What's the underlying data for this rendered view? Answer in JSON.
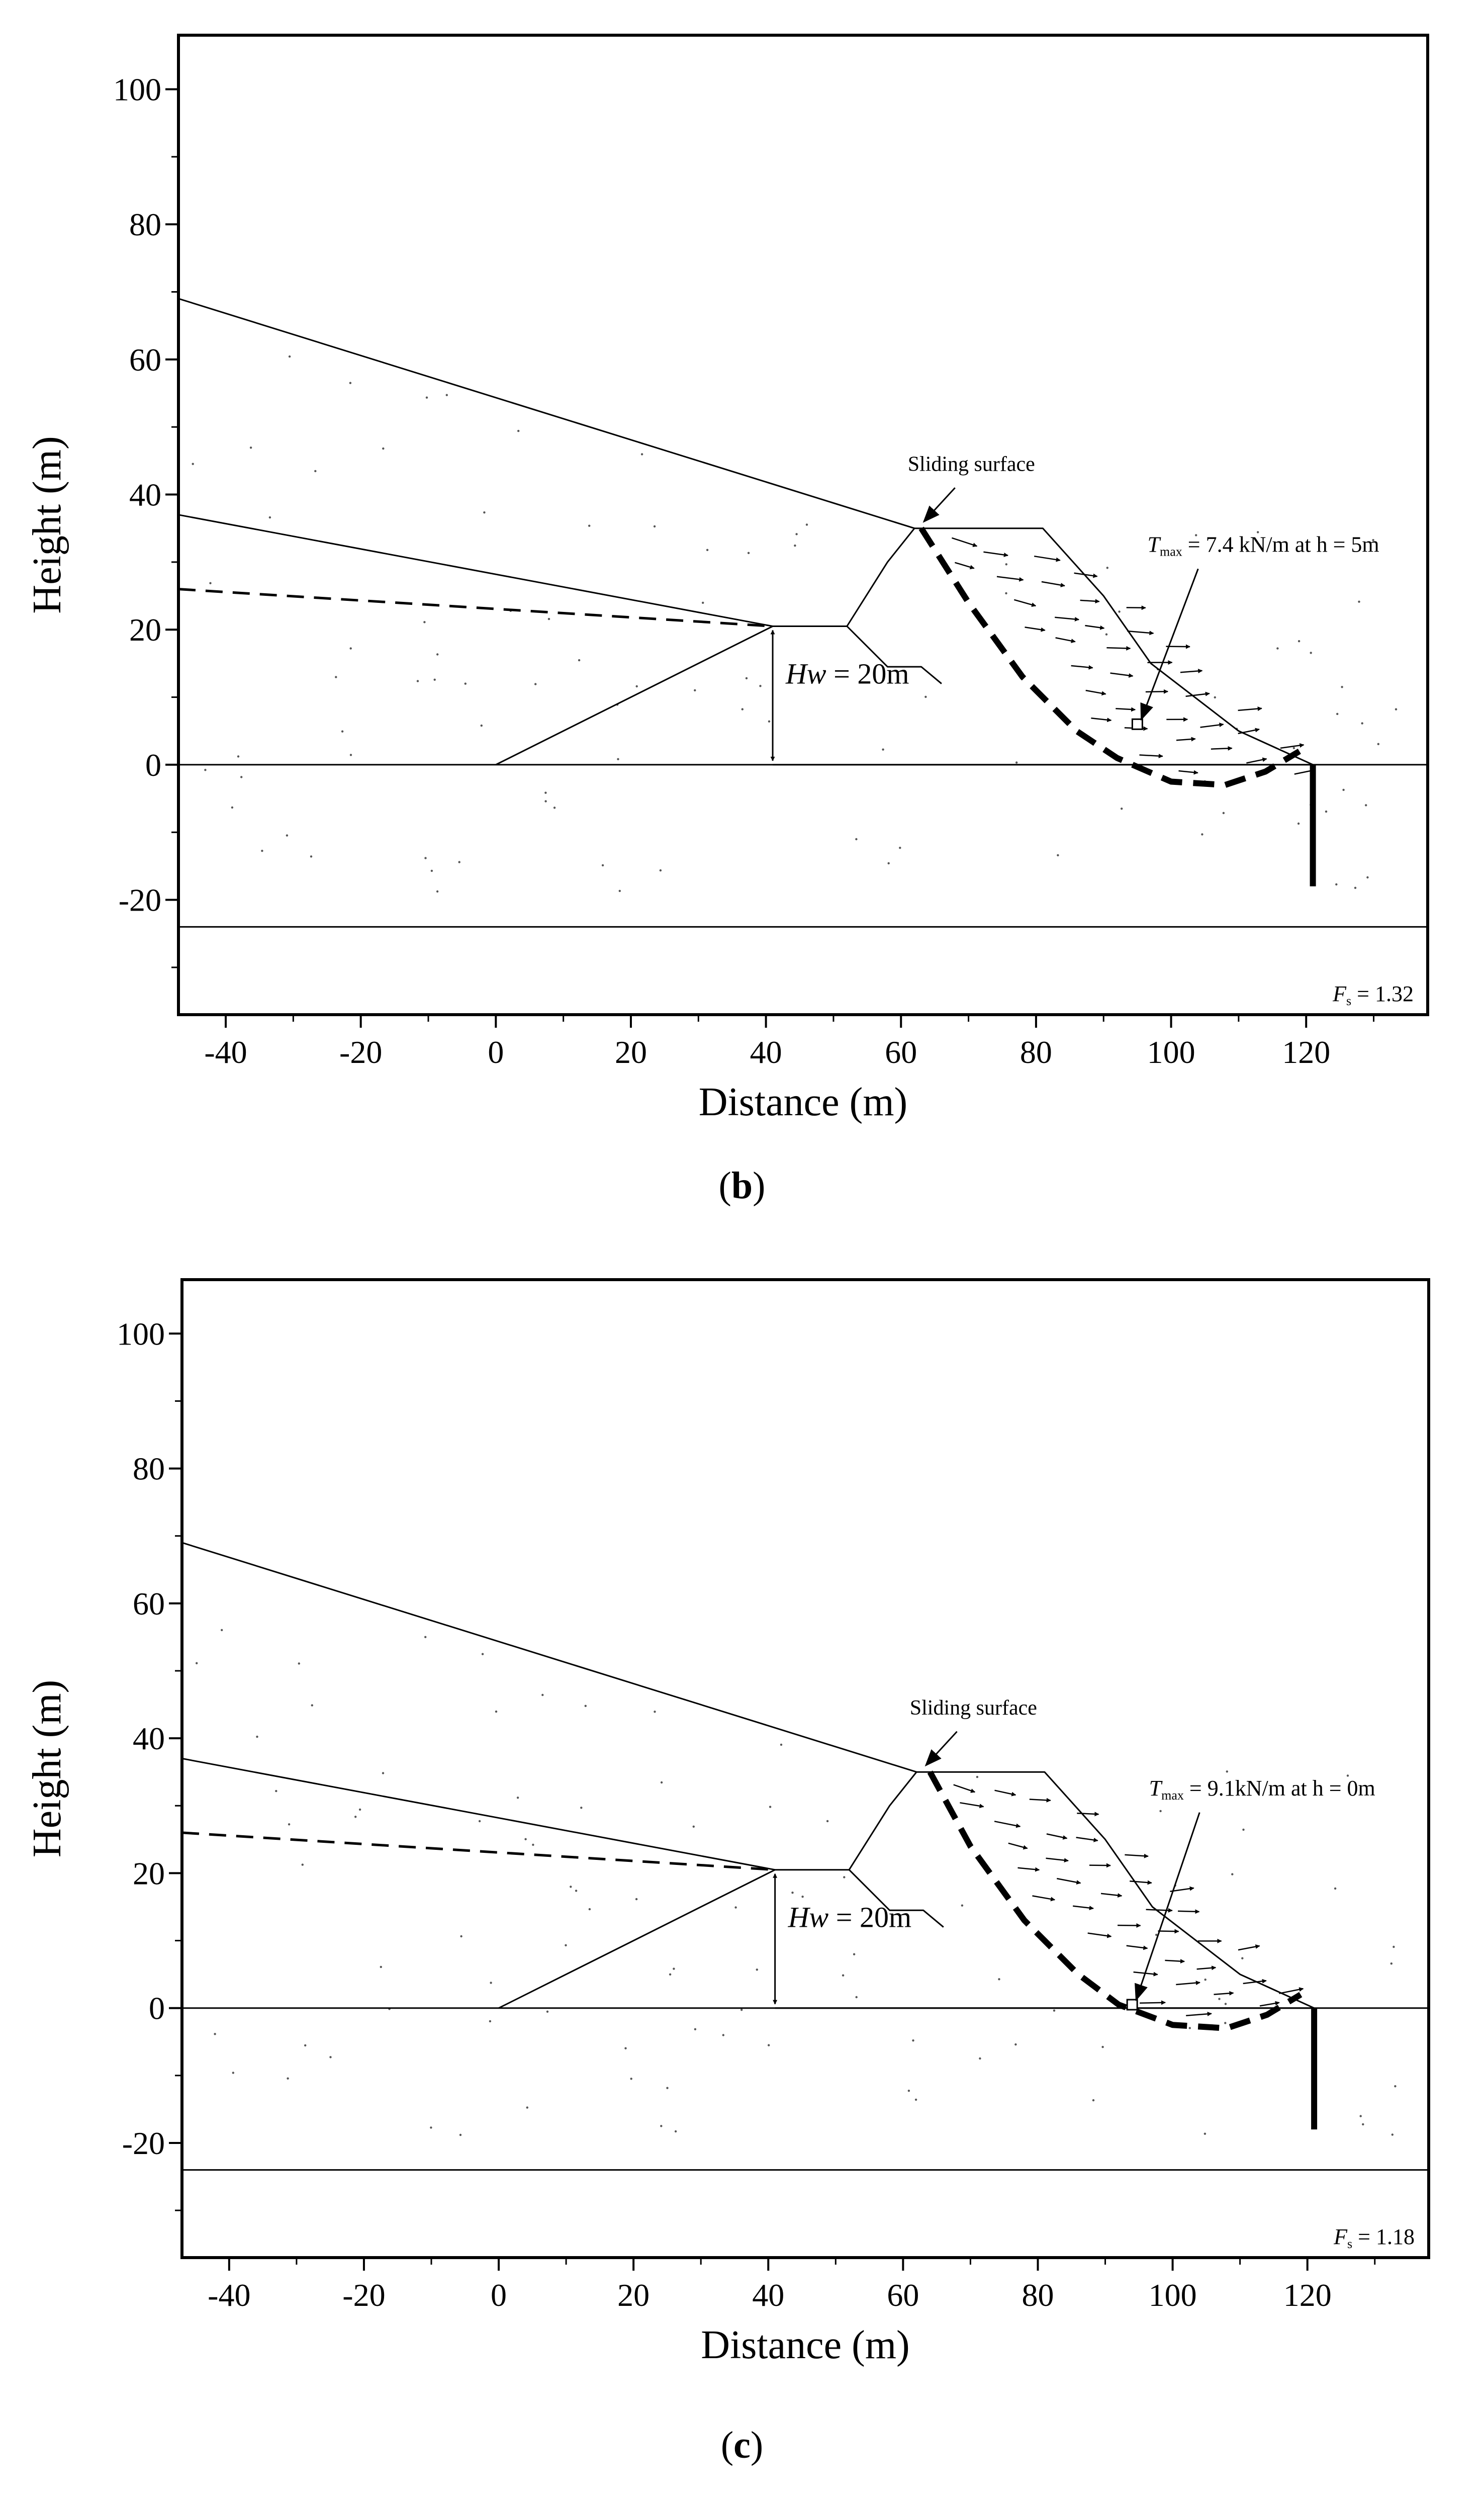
{
  "figure_captions": [
    {
      "open": "(",
      "letter": "b",
      "close": ")"
    },
    {
      "open": "(",
      "letter": "c",
      "close": ")"
    }
  ],
  "chart_data": [
    {
      "type": "line",
      "panel": "b",
      "xlabel": "Distance (m)",
      "ylabel": "Height (m)",
      "xlim": [
        -47,
        138
      ],
      "ylim": [
        -37,
        108
      ],
      "xticks": [
        -40,
        -20,
        0,
        20,
        40,
        60,
        80,
        100,
        120
      ],
      "yticks": [
        100,
        80,
        60,
        40,
        20,
        0,
        -20
      ],
      "grid": false,
      "series": [
        {
          "name": "ground-surface",
          "style": "solid",
          "points": [
            [
              -47,
              69
            ],
            [
              62,
              35
            ]
          ]
        },
        {
          "name": "layer-boundary",
          "style": "solid",
          "points": [
            [
              -47,
              37
            ],
            [
              41,
              20.5
            ]
          ]
        },
        {
          "name": "water-table",
          "style": "dashed",
          "points": [
            [
              -47,
              26
            ],
            [
              41,
              20.5
            ]
          ]
        },
        {
          "name": "embankment-upstream",
          "style": "solid",
          "points": [
            [
              0,
              0
            ],
            [
              41,
              20.5
            ],
            [
              52,
              20.5
            ],
            [
              58,
              30
            ],
            [
              62,
              35
            ],
            [
              81,
              35
            ],
            [
              90,
              25
            ],
            [
              97,
              15
            ],
            [
              110,
              5
            ],
            [
              121,
              0
            ]
          ]
        },
        {
          "name": "inner-berm",
          "style": "solid",
          "points": [
            [
              52,
              20.5
            ],
            [
              58,
              14.5
            ],
            [
              63,
              14.5
            ],
            [
              66,
              12
            ]
          ]
        },
        {
          "name": "base-line",
          "style": "solid",
          "points": [
            [
              -47,
              0
            ],
            [
              138,
              0
            ]
          ]
        },
        {
          "name": "water-level-base",
          "style": "solid",
          "points": [
            [
              41,
              0
            ],
            [
              121,
              0
            ]
          ]
        },
        {
          "name": "bedrock-line",
          "style": "solid",
          "points": [
            [
              -47,
              -24
            ],
            [
              138,
              -24
            ]
          ]
        },
        {
          "name": "sheet-pile",
          "style": "thick",
          "points": [
            [
              121,
              0
            ],
            [
              121,
              -18
            ]
          ]
        },
        {
          "name": "sliding-surface",
          "style": "dashed-thick",
          "points": [
            [
              63,
              35
            ],
            [
              70,
              24
            ],
            [
              78,
              13
            ],
            [
              86,
              5
            ],
            [
              92,
              1
            ],
            [
              100,
              -2.5
            ],
            [
              108,
              -3
            ],
            [
              114,
              -1
            ],
            [
              119,
              2
            ]
          ]
        }
      ],
      "annotations": {
        "sliding_surface_label": "Sliding surface",
        "t_symbol": "T",
        "t_subscript": "max",
        "t_value": " = 7.4 kN/m at h = 5m",
        "hw_var": "Hw",
        "hw_value": " = 20m",
        "fs_symbol": "F",
        "fs_subscript": "s",
        "fs_value": " = 1.32"
      },
      "tmax_point": [
        95,
        6
      ]
    },
    {
      "type": "line",
      "panel": "c",
      "xlabel": "Distance (m)",
      "ylabel": "Height (m)",
      "xlim": [
        -47,
        138
      ],
      "ylim": [
        -37,
        108
      ],
      "xticks": [
        -40,
        -20,
        0,
        20,
        40,
        60,
        80,
        100,
        120
      ],
      "yticks": [
        100,
        80,
        60,
        40,
        20,
        0,
        -20
      ],
      "grid": false,
      "series": [
        {
          "name": "ground-surface",
          "style": "solid",
          "points": [
            [
              -47,
              69
            ],
            [
              62,
              35
            ]
          ]
        },
        {
          "name": "layer-boundary",
          "style": "solid",
          "points": [
            [
              -47,
              37
            ],
            [
              41,
              20.5
            ]
          ]
        },
        {
          "name": "water-table",
          "style": "dashed",
          "points": [
            [
              -47,
              26
            ],
            [
              41,
              20.5
            ]
          ]
        },
        {
          "name": "embankment-upstream",
          "style": "solid",
          "points": [
            [
              0,
              0
            ],
            [
              41,
              20.5
            ],
            [
              52,
              20.5
            ],
            [
              58,
              30
            ],
            [
              62,
              35
            ],
            [
              81,
              35
            ],
            [
              90,
              25
            ],
            [
              97,
              15
            ],
            [
              110,
              5
            ],
            [
              121,
              0
            ]
          ]
        },
        {
          "name": "inner-berm",
          "style": "solid",
          "points": [
            [
              52,
              20.5
            ],
            [
              58,
              14.5
            ],
            [
              63,
              14.5
            ],
            [
              66,
              12
            ]
          ]
        },
        {
          "name": "base-line",
          "style": "solid",
          "points": [
            [
              -47,
              0
            ],
            [
              138,
              0
            ]
          ]
        },
        {
          "name": "water-level-base",
          "style": "solid",
          "points": [
            [
              41,
              0
            ],
            [
              121,
              0
            ]
          ]
        },
        {
          "name": "bedrock-line",
          "style": "solid",
          "points": [
            [
              -47,
              -24
            ],
            [
              138,
              -24
            ]
          ]
        },
        {
          "name": "sheet-pile",
          "style": "thick",
          "points": [
            [
              121,
              0
            ],
            [
              121,
              -18
            ]
          ]
        },
        {
          "name": "sliding-surface",
          "style": "dashed-thick",
          "points": [
            [
              64,
              35
            ],
            [
              70,
              24
            ],
            [
              78,
              13
            ],
            [
              86,
              5
            ],
            [
              92,
              0.5
            ],
            [
              100,
              -2.5
            ],
            [
              108,
              -3
            ],
            [
              114,
              -1
            ],
            [
              119,
              2
            ]
          ]
        }
      ],
      "annotations": {
        "sliding_surface_label": "Sliding surface",
        "t_symbol": "T",
        "t_subscript": "max",
        "t_value": " = 9.1kN/m at h = 0m",
        "hw_var": "Hw",
        "hw_value": " = 20m",
        "fs_symbol": "F",
        "fs_subscript": "s",
        "fs_value": " = 1.18"
      },
      "tmax_point": [
        94,
        0.5
      ]
    }
  ]
}
